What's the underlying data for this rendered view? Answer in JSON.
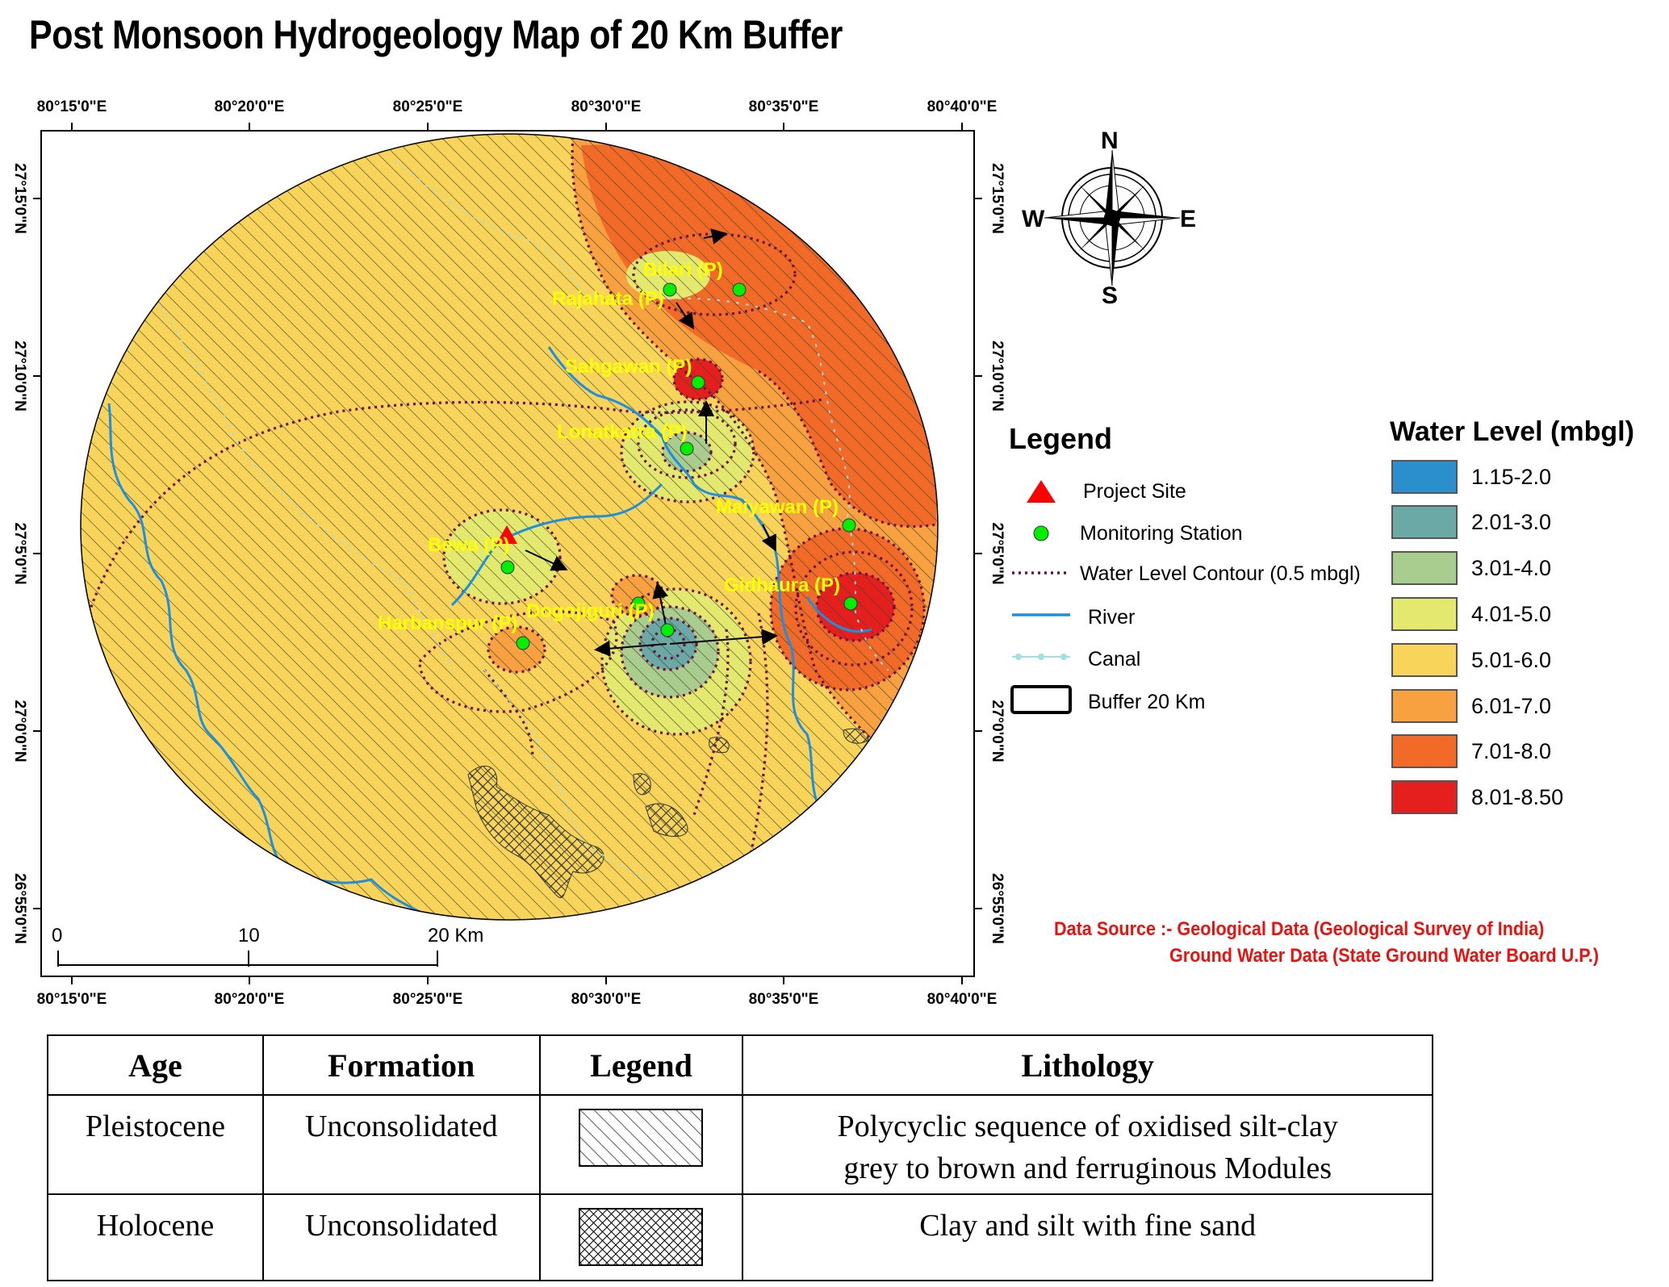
{
  "title": "Post Monsoon Hydrogeology Map of  20 Km Buffer",
  "longitude_ticks": [
    "80°15'0\"E",
    "80°20'0\"E",
    "80°25'0\"E",
    "80°30'0\"E",
    "80°35'0\"E",
    "80°40'0\"E"
  ],
  "latitude_ticks": [
    "27°15'0\"N",
    "27°10'0\"N",
    "27°5'0\"N",
    "27°0'0\"N",
    "26°55'0\"N"
  ],
  "north_arrow": {
    "n": "N",
    "s": "S",
    "e": "E",
    "w": "W",
    "icon": "compass-rose-icon"
  },
  "scale_bar": {
    "labels": [
      "0",
      "10",
      "20 Km"
    ]
  },
  "stations": {
    "bilari": "Bilari (P)",
    "rajahata": "Rajahata (P)",
    "sahgawan": "Sahgawan (P)",
    "lonatkatra": "Lonatkatra (P)",
    "maiyawan": "Maiyawan (P)",
    "bewa": "Bewa (P)",
    "gidhaura": "Gidhaura (P)",
    "harbanspur": "Harbanspur (P)",
    "dogojiguri": "Dogojiguri (P)"
  },
  "legend": {
    "heading": "Legend",
    "items": [
      {
        "label": "Project Site",
        "color": "#ff0000",
        "icon": "red-triangle-icon"
      },
      {
        "label": "Monitoring Station",
        "color": "#00ee00",
        "icon": "green-circle-icon"
      },
      {
        "label": "Water Level Contour (0.5 mbgl)",
        "color": "#6b1040",
        "icon": "dotted-line-icon"
      },
      {
        "label": "River",
        "color": "#1e8fe0",
        "icon": "blue-line-icon"
      },
      {
        "label": "Canal",
        "color": "#9fe0e8",
        "icon": "dotted-canal-icon"
      },
      {
        "label": "Buffer 20 Km",
        "color": "#000000",
        "icon": "buffer-box-icon"
      }
    ]
  },
  "water_level": {
    "heading": "Water Level (mbgl)",
    "classes": [
      {
        "label": "1.15-2.0",
        "color": "#2b8fce"
      },
      {
        "label": "2.01-3.0",
        "color": "#6aa9a5"
      },
      {
        "label": "3.01-4.0",
        "color": "#a9cc8f"
      },
      {
        "label": "4.01-5.0",
        "color": "#e2e96e"
      },
      {
        "label": "5.01-6.0",
        "color": "#f8d55a"
      },
      {
        "label": "6.01-7.0",
        "color": "#f7a140"
      },
      {
        "label": "7.01-8.0",
        "color": "#f26a28"
      },
      {
        "label": "8.01-8.50",
        "color": "#e51e1e"
      }
    ]
  },
  "data_source": {
    "line1": "Data Source :- Geological Data (Geological Survey of India)",
    "line2": "Ground Water Data (State Ground Water Board U.P.)"
  },
  "lithology_table": {
    "headers": [
      "Age",
      "Formation",
      "Legend",
      "Lithology"
    ],
    "rows": [
      {
        "age": "Pleistocene",
        "formation": "Unconsolidated",
        "pattern": "diagonal-hatch",
        "lithology_1": "Polycyclic sequence of oxidised silt-clay",
        "lithology_2": "grey to brown and ferruginous Modules"
      },
      {
        "age": "Holocene",
        "formation": "Unconsolidated",
        "pattern": "cross-hatch",
        "lithology_1": "Clay and silt with fine sand",
        "lithology_2": ""
      }
    ]
  }
}
